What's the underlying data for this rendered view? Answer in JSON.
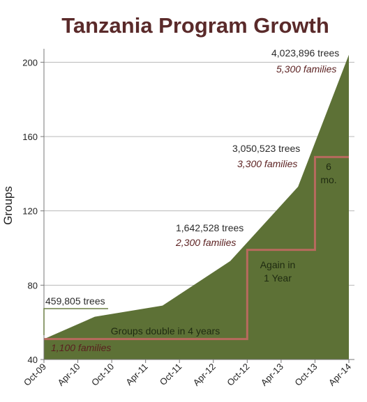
{
  "chart_data": {
    "type": "area",
    "title": "Tanzania Program Growth",
    "xlabel": "",
    "ylabel": "Groups",
    "ylim": [
      40,
      205
    ],
    "yticks": [
      40,
      80,
      120,
      160,
      200
    ],
    "grid": "horizontal",
    "x_tick_labels": [
      "Oct-09",
      "Apr-10",
      "Oct-10",
      "Apr-11",
      "Oct-11",
      "Apr-12",
      "Oct-12",
      "Apr-13",
      "Oct-13",
      "Apr-14"
    ],
    "series": [
      {
        "x": [
          "Oct-09",
          "Jul-10",
          "Jul-11",
          "Jul-12",
          "Jul-13",
          "Apr-14"
        ],
        "values": [
          51,
          63,
          69,
          93,
          133,
          204
        ],
        "color": "#5d7136"
      }
    ],
    "step_line": {
      "x": [
        "Oct-09",
        "Oct-12",
        "Oct-12",
        "Oct-13",
        "Oct-13",
        "Apr-14"
      ],
      "values": [
        51,
        51,
        99,
        99,
        149,
        149
      ],
      "color": "#b86a5e"
    },
    "annotations": [
      {
        "id": "a1",
        "text": "459,805 trees"
      },
      {
        "id": "a2",
        "text": "1,100 families"
      },
      {
        "id": "a3",
        "text": "Groups double in 4 years"
      },
      {
        "id": "a4",
        "text": "1,642,528 trees"
      },
      {
        "id": "a5",
        "text": "2,300 families"
      },
      {
        "id": "a6",
        "text": "Again in"
      },
      {
        "id": "a7",
        "text": "1 Year"
      },
      {
        "id": "a8",
        "text": "3,050,523 trees"
      },
      {
        "id": "a9",
        "text": "3,300 families"
      },
      {
        "id": "a10",
        "text": "6"
      },
      {
        "id": "a11",
        "text": "mo."
      },
      {
        "id": "a12",
        "text": "4,023,896 trees"
      },
      {
        "id": "a13",
        "text": "5,300 families"
      }
    ]
  }
}
